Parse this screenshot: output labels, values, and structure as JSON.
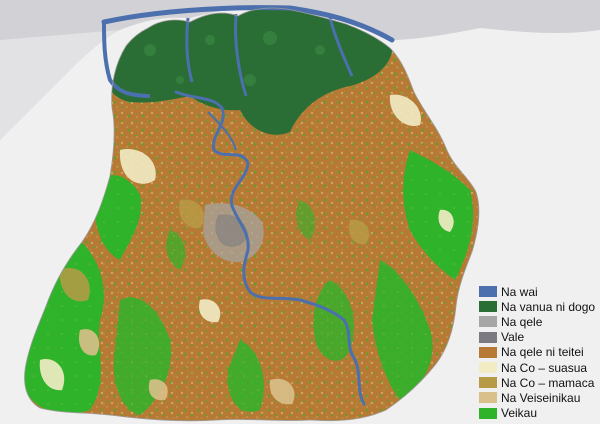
{
  "map": {
    "colors": {
      "sea": "#d1d1d6",
      "land_outside": "#ebebeb",
      "water": "#4c6fae",
      "mangrove": "#2a6e36",
      "urban": "#a6a6a6",
      "village": "#7a7a80",
      "grassland": "#b77a34",
      "forest": "#2fb32a",
      "crop_light": "#f2ecc4",
      "crop_mixed": "#b79a45",
      "shrub": "#d9bf8a"
    }
  },
  "legend": {
    "items": [
      {
        "label": "Na wai",
        "color": "#4c6fae"
      },
      {
        "label": "Na vanua ni dogo",
        "color": "#2a6e36"
      },
      {
        "label": "Na qele",
        "color": "#a6a6a6"
      },
      {
        "label": "Vale",
        "color": "#7a7a80"
      },
      {
        "label": "Na qele ni teitei",
        "color": "#b77a34"
      },
      {
        "label": "Na Co – suasua",
        "color": "#f2ecc4"
      },
      {
        "label": "Na Co – mamaca",
        "color": "#b79a45"
      },
      {
        "label": "Na Veiseinikau",
        "color": "#d9bf8a"
      },
      {
        "label": "Veikau",
        "color": "#2fb32a"
      }
    ]
  }
}
